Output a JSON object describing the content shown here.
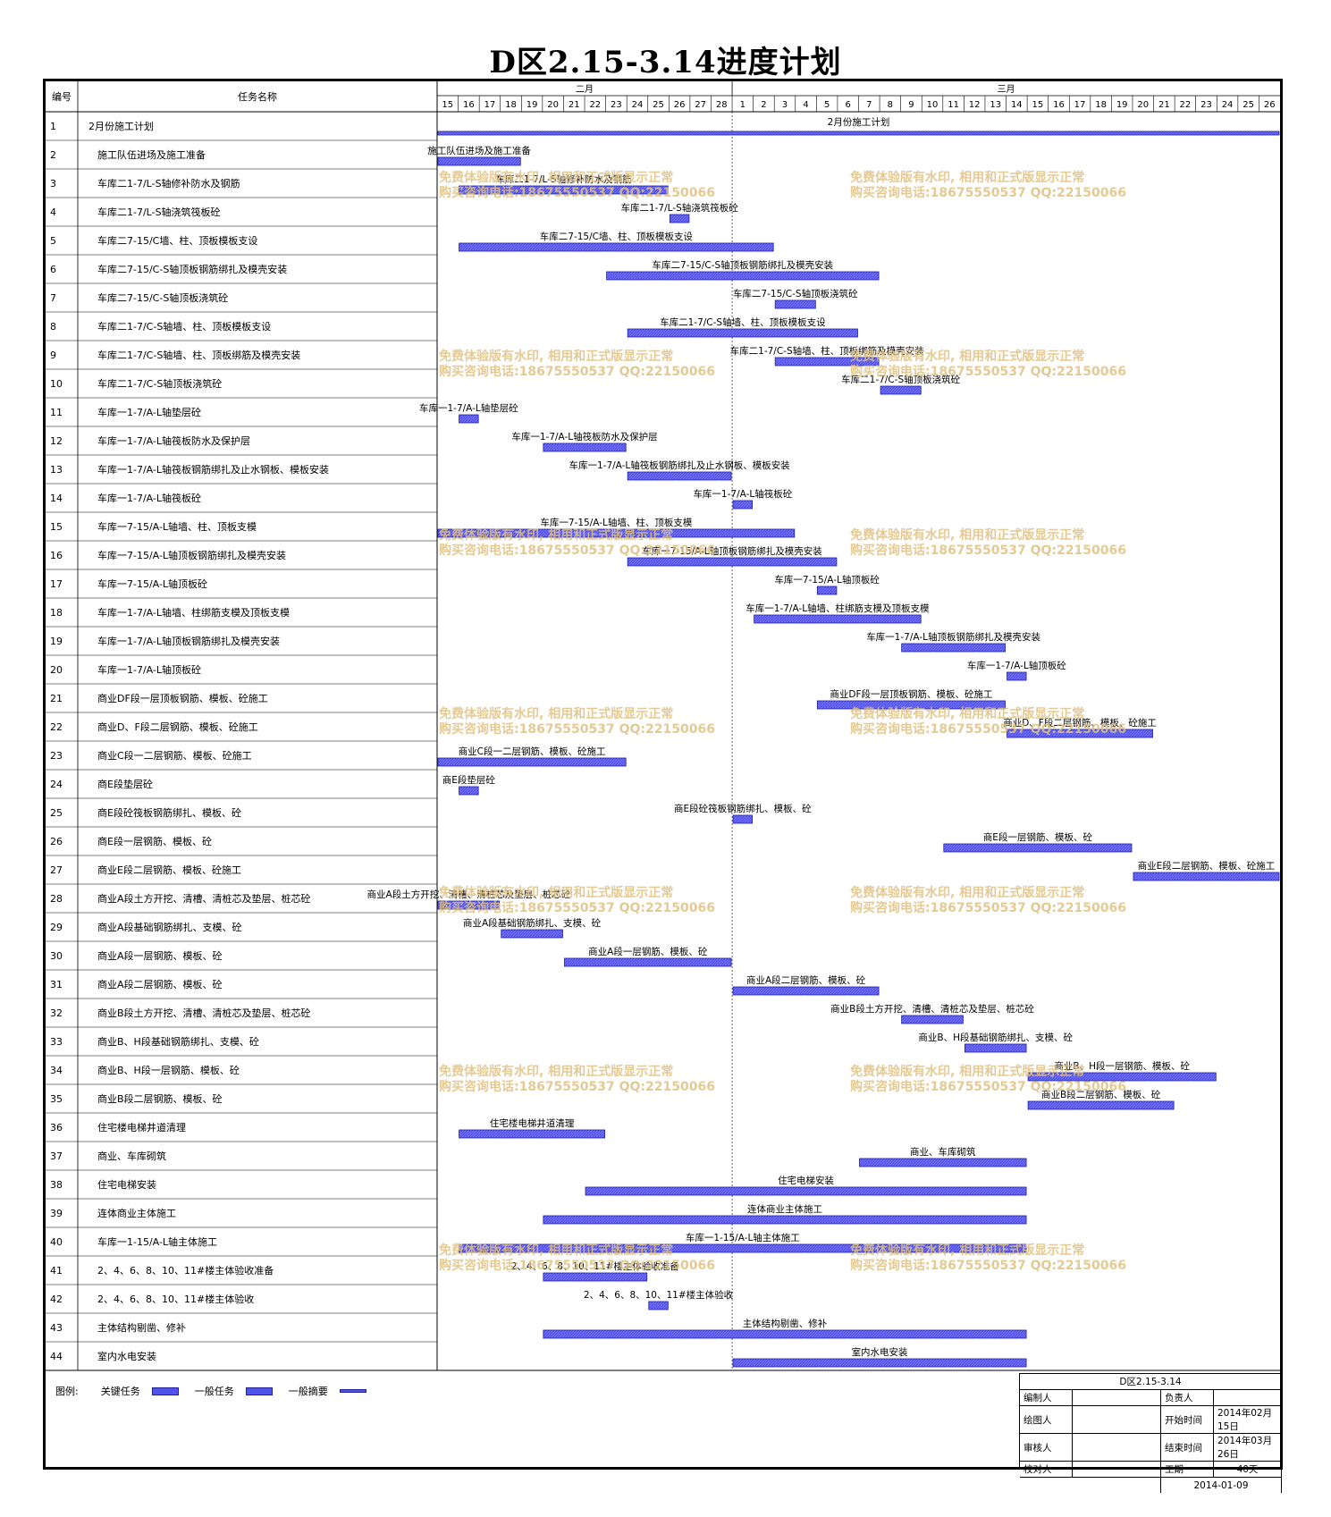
{
  "title": "D区2.15-3.14进度计划",
  "header": {
    "col_no": "编号",
    "col_name": "任务名称",
    "months": [
      {
        "label": "二月",
        "start_day_index": 0,
        "span": 14
      },
      {
        "label": "三月",
        "start_day_index": 14,
        "span": 26
      }
    ],
    "days": [
      "15",
      "16",
      "17",
      "18",
      "19",
      "20",
      "21",
      "22",
      "23",
      "24",
      "25",
      "26",
      "27",
      "28",
      "1",
      "2",
      "3",
      "4",
      "5",
      "6",
      "7",
      "8",
      "9",
      "10",
      "11",
      "12",
      "13",
      "14",
      "15",
      "16",
      "17",
      "18",
      "19",
      "20",
      "21",
      "22",
      "23",
      "24",
      "25",
      "26"
    ]
  },
  "colors": {
    "bar_fill": "#5252ee",
    "bar_border": "#202090",
    "watermark": "#e0c080"
  },
  "watermark": {
    "line1": "免费体验版有水印, 相用和正式版显示正常",
    "line2": "购买咨询电话:18675550537 QQ:22150066"
  },
  "chart_data": {
    "type": "gantt",
    "x_unit": "day",
    "x_start": "2014-02-15",
    "tasks": [
      {
        "no": "1",
        "name": "2月份施工计划",
        "start": "2014-02-15",
        "end": "2014-03-26"
      },
      {
        "no": "2",
        "name": "施工队伍进场及施工准备",
        "start": "2014-02-15",
        "end": "2014-02-18"
      },
      {
        "no": "3",
        "name": "车库二1-7/L-S轴修补防水及钢筋",
        "start": "2014-02-16",
        "end": "2014-02-25"
      },
      {
        "no": "4",
        "name": "车库二1-7/L-S轴浇筑筏板砼",
        "start": "2014-02-26",
        "end": "2014-02-26"
      },
      {
        "no": "5",
        "name": "车库二7-15/C墙、柱、顶板模板支设",
        "start": "2014-02-16",
        "end": "2014-03-02"
      },
      {
        "no": "6",
        "name": "车库二7-15/C-S轴顶板钢筋绑扎及模壳安装",
        "start": "2014-02-23",
        "end": "2014-03-07"
      },
      {
        "no": "7",
        "name": "车库二7-15/C-S轴顶板浇筑砼",
        "start": "2014-03-03",
        "end": "2014-03-04"
      },
      {
        "no": "8",
        "name": "车库二1-7/C-S轴墙、柱、顶板模板支设",
        "start": "2014-02-24",
        "end": "2014-03-06"
      },
      {
        "no": "9",
        "name": "车库二1-7/C-S轴墙、柱、顶板绑筋及模壳安装",
        "start": "2014-03-03",
        "end": "2014-03-07"
      },
      {
        "no": "10",
        "name": "车库二1-7/C-S轴顶板浇筑砼",
        "start": "2014-03-08",
        "end": "2014-03-09"
      },
      {
        "no": "11",
        "name": "车库一1-7/A-L轴垫层砼",
        "start": "2014-02-16",
        "end": "2014-02-16"
      },
      {
        "no": "12",
        "name": "车库一1-7/A-L轴筏板防水及保护层",
        "start": "2014-02-20",
        "end": "2014-02-23"
      },
      {
        "no": "13",
        "name": "车库一1-7/A-L轴筏板钢筋绑扎及止水钢板、模板安装",
        "start": "2014-02-24",
        "end": "2014-02-28"
      },
      {
        "no": "14",
        "name": "车库一1-7/A-L轴筏板砼",
        "start": "2014-03-01",
        "end": "2014-03-01"
      },
      {
        "no": "15",
        "name": "车库一7-15/A-L轴墙、柱、顶板支模",
        "start": "2014-02-15",
        "end": "2014-03-03"
      },
      {
        "no": "16",
        "name": "车库一7-15/A-L轴顶板钢筋绑扎及模壳安装",
        "start": "2014-02-24",
        "end": "2014-03-05"
      },
      {
        "no": "17",
        "name": "车库一7-15/A-L轴顶板砼",
        "start": "2014-03-05",
        "end": "2014-03-05"
      },
      {
        "no": "18",
        "name": "车库一1-7/A-L轴墙、柱绑筋支模及顶板支模",
        "start": "2014-03-02",
        "end": "2014-03-09"
      },
      {
        "no": "19",
        "name": "车库一1-7/A-L轴顶板钢筋绑扎及模壳安装",
        "start": "2014-03-09",
        "end": "2014-03-13"
      },
      {
        "no": "20",
        "name": "车库一1-7/A-L轴顶板砼",
        "start": "2014-03-14",
        "end": "2014-03-14"
      },
      {
        "no": "21",
        "name": "商业DF段一层顶板钢筋、模板、砼施工",
        "start": "2014-03-05",
        "end": "2014-03-13"
      },
      {
        "no": "22",
        "name": "商业D、F段二层钢筋、模板、砼施工",
        "start": "2014-03-14",
        "end": "2014-03-20"
      },
      {
        "no": "23",
        "name": "商业C段一二层钢筋、模板、砼施工",
        "start": "2014-02-15",
        "end": "2014-02-23"
      },
      {
        "no": "24",
        "name": "商E段垫层砼",
        "start": "2014-02-16",
        "end": "2014-02-16"
      },
      {
        "no": "25",
        "name": "商E段砼筏板钢筋绑扎、模板、砼",
        "start": "2014-03-01",
        "end": "2014-03-01"
      },
      {
        "no": "26",
        "name": "商E段一层钢筋、模板、砼",
        "start": "2014-03-11",
        "end": "2014-03-19"
      },
      {
        "no": "27",
        "name": "商业E段二层钢筋、模板、砼施工",
        "start": "2014-03-20",
        "end": "2014-03-26"
      },
      {
        "no": "28",
        "name": "商业A段土方开挖、清槽、清桩芯及垫层、桩芯砼",
        "start": "2014-02-15",
        "end": "2014-02-17"
      },
      {
        "no": "29",
        "name": "商业A段基础钢筋绑扎、支模、砼",
        "start": "2014-02-18",
        "end": "2014-02-20"
      },
      {
        "no": "30",
        "name": "商业A段一层钢筋、模板、砼",
        "start": "2014-02-21",
        "end": "2014-02-28"
      },
      {
        "no": "31",
        "name": "商业A段二层钢筋、模板、砼",
        "start": "2014-03-01",
        "end": "2014-03-07"
      },
      {
        "no": "32",
        "name": "商业B段土方开挖、清槽、清桩芯及垫层、桩芯砼",
        "start": "2014-03-09",
        "end": "2014-03-11"
      },
      {
        "no": "33",
        "name": "商业B、H段基础钢筋绑扎、支模、砼",
        "start": "2014-03-12",
        "end": "2014-03-14"
      },
      {
        "no": "34",
        "name": "商业B、H段一层钢筋、模板、砼",
        "start": "2014-03-15",
        "end": "2014-03-23"
      },
      {
        "no": "35",
        "name": "商业B段二层钢筋、模板、砼",
        "start": "2014-03-15",
        "end": "2014-03-21"
      },
      {
        "no": "36",
        "name": "住宅楼电梯井道清理",
        "start": "2014-02-16",
        "end": "2014-02-22"
      },
      {
        "no": "37",
        "name": "商业、车库砌筑",
        "start": "2014-03-07",
        "end": "2014-03-14"
      },
      {
        "no": "38",
        "name": "住宅电梯安装",
        "start": "2014-02-22",
        "end": "2014-03-14"
      },
      {
        "no": "39",
        "name": "连体商业主体施工",
        "start": "2014-02-20",
        "end": "2014-03-14"
      },
      {
        "no": "40",
        "name": "车库一1-15/A-L轴主体施工",
        "start": "2014-02-16",
        "end": "2014-03-14"
      },
      {
        "no": "41",
        "name": "2、4、6、8、10、11#楼主体验收准备",
        "start": "2014-02-20",
        "end": "2014-02-24"
      },
      {
        "no": "42",
        "name": "2、4、6、8、10、11#楼主体验收",
        "start": "2014-02-25",
        "end": "2014-02-25"
      },
      {
        "no": "43",
        "name": "主体结构剔凿、修补",
        "start": "2014-02-20",
        "end": "2014-03-14"
      },
      {
        "no": "44",
        "name": "室内水电安装",
        "start": "2014-03-01",
        "end": "2014-03-14"
      }
    ]
  },
  "legend": {
    "label": "图例:",
    "items": [
      "关键任务",
      "一般任务",
      "一般摘要"
    ]
  },
  "info_box": {
    "title": "D区2.15-3.14",
    "rows": [
      {
        "k1": "编制人",
        "v1": "",
        "k2": "负责人",
        "v2": ""
      },
      {
        "k1": "绘图人",
        "v1": "",
        "k2": "开始时间",
        "v2": "2014年02月15日"
      },
      {
        "k1": "审核人",
        "v1": "",
        "k2": "结束时间",
        "v2": "2014年03月26日"
      },
      {
        "k1": "校对人",
        "v1": "",
        "k2": "工期",
        "v2": "40天"
      }
    ],
    "date": "2014-01-09"
  }
}
